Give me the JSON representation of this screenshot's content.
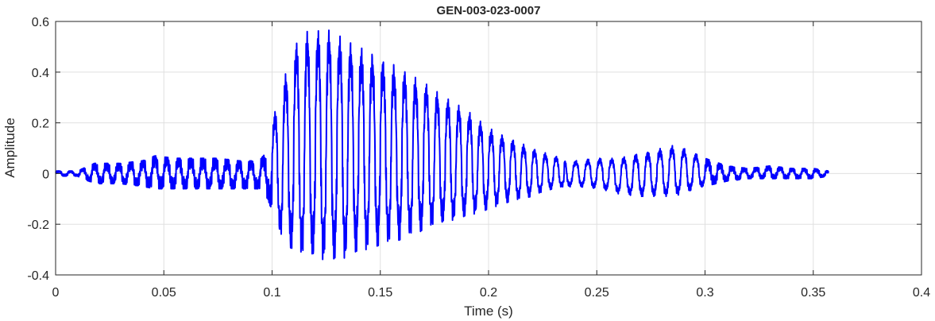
{
  "chart_data": {
    "type": "line",
    "title": "GEN-003-023-0007",
    "xlabel": "Time (s)",
    "ylabel": "Amplitude",
    "xlim": [
      0,
      0.4
    ],
    "ylim": [
      -0.4,
      0.6
    ],
    "xticks": [
      0,
      0.05,
      0.1,
      0.15,
      0.2,
      0.25,
      0.3,
      0.35,
      0.4
    ],
    "xtick_labels": [
      "0",
      "0.05",
      "0.1",
      "0.15",
      "0.2",
      "0.25",
      "0.3",
      "0.35",
      "0.4"
    ],
    "yticks": [
      -0.4,
      -0.2,
      0,
      0.2,
      0.4,
      0.6
    ],
    "ytick_labels": [
      "-0.4",
      "-0.2",
      "0",
      "0.2",
      "0.4",
      "0.6"
    ],
    "grid": true,
    "legend": "none",
    "colors": {
      "series": "#0000ff",
      "grid": "#e0e0e0",
      "axes": "#262626"
    },
    "series": [
      {
        "x": [
          0.0,
          0.01,
          0.018,
          0.03,
          0.04,
          0.046,
          0.055,
          0.065,
          0.075,
          0.085,
          0.094,
          0.098,
          0.1,
          0.104,
          0.11,
          0.116,
          0.12,
          0.125,
          0.13,
          0.135,
          0.14,
          0.145,
          0.15,
          0.16,
          0.17,
          0.18,
          0.19,
          0.2,
          0.21,
          0.22,
          0.23,
          0.24,
          0.25,
          0.26,
          0.27,
          0.28,
          0.285,
          0.29,
          0.3,
          0.31,
          0.32,
          0.33,
          0.34,
          0.35,
          0.357
        ],
        "y_max": [
          0.01,
          0.01,
          0.04,
          0.04,
          0.05,
          0.07,
          0.06,
          0.06,
          0.06,
          0.05,
          0.05,
          0.09,
          0.2,
          0.33,
          0.5,
          0.56,
          0.56,
          0.57,
          0.55,
          0.52,
          0.5,
          0.48,
          0.46,
          0.41,
          0.36,
          0.3,
          0.25,
          0.18,
          0.14,
          0.1,
          0.07,
          0.05,
          0.06,
          0.06,
          0.08,
          0.1,
          0.11,
          0.1,
          0.06,
          0.03,
          0.02,
          0.03,
          0.02,
          0.02,
          0.01
        ],
        "y_min": [
          -0.01,
          -0.01,
          -0.04,
          -0.04,
          -0.05,
          -0.06,
          -0.06,
          -0.06,
          -0.06,
          -0.06,
          -0.06,
          -0.1,
          -0.15,
          -0.25,
          -0.32,
          -0.34,
          -0.34,
          -0.35,
          -0.34,
          -0.33,
          -0.3,
          -0.3,
          -0.28,
          -0.26,
          -0.23,
          -0.2,
          -0.17,
          -0.14,
          -0.11,
          -0.09,
          -0.06,
          -0.05,
          -0.06,
          -0.08,
          -0.09,
          -0.09,
          -0.09,
          -0.08,
          -0.05,
          -0.03,
          -0.02,
          -0.02,
          -0.02,
          -0.02,
          -0.01
        ]
      }
    ]
  }
}
